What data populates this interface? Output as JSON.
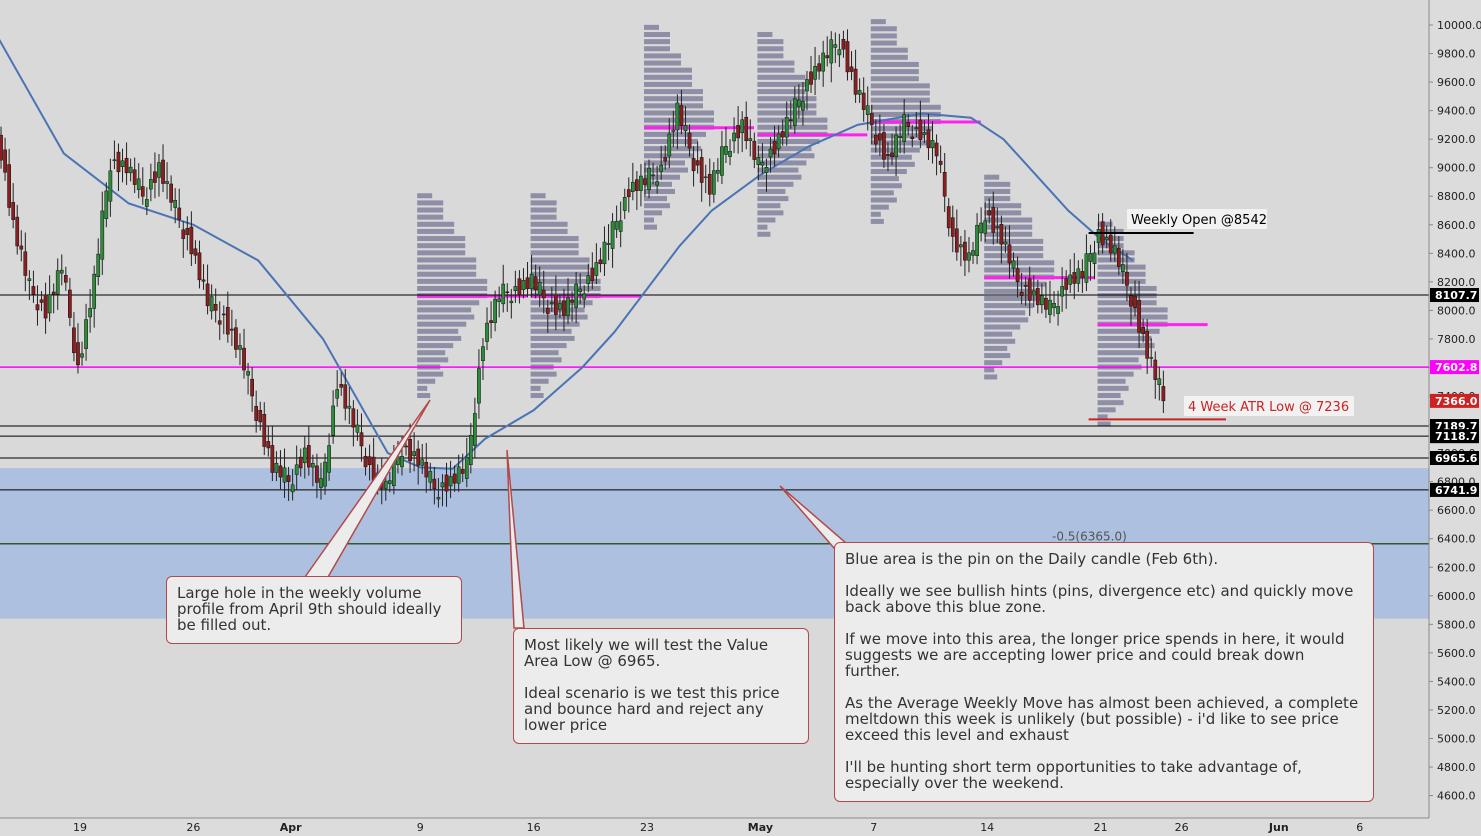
{
  "chart_data": {
    "type": "candlestick",
    "y_axis": {
      "min": 4500,
      "max": 10100,
      "ticks": [
        4600,
        4800,
        5000,
        5200,
        5400,
        5600,
        5800,
        6000,
        6200,
        6400,
        6600,
        6800,
        7000,
        7200,
        7400,
        7600,
        7800,
        8000,
        8200,
        8400,
        8600,
        8800,
        9000,
        9200,
        9400,
        9600,
        9800,
        10000
      ],
      "tick_labels": [
        "4600.0",
        "4800.0",
        "5000.0",
        "5200.0",
        "5400.0",
        "5600.0",
        "5800.0",
        "6000.0",
        "6200.0",
        "6400.0",
        "6600.0",
        "6800.0",
        "7000.0",
        "7200.0",
        "7400.0",
        "7600.0",
        "7800.0",
        "8000.0",
        "8200.0",
        "8400.0",
        "8600.0",
        "8800.0",
        "9000.0",
        "9200.0",
        "9400.0",
        "9600.0",
        "9800.0",
        "10000.0"
      ]
    },
    "x_axis": {
      "labels": [
        "19",
        "26",
        "Apr",
        "9",
        "16",
        "23",
        "May",
        "7",
        "14",
        "21",
        "26",
        "Jun",
        "6"
      ],
      "label_days": [
        0,
        7,
        13,
        21,
        28,
        35,
        42,
        49,
        56,
        63,
        68,
        74,
        79
      ]
    },
    "price_levels": [
      {
        "value": 8107.7,
        "label": "8107.7",
        "kind": "support-resistance",
        "color": "#000000"
      },
      {
        "value": 7602.8,
        "label": "7602.8",
        "kind": "magenta-level",
        "color": "#ff00ff"
      },
      {
        "value": 7366.0,
        "label": "7366.0",
        "kind": "last-price",
        "color": "#cc2222"
      },
      {
        "value": 7189.7,
        "label": "7189.7",
        "kind": "support-resistance",
        "color": "#000000"
      },
      {
        "value": 7118.7,
        "label": "7118.7",
        "kind": "support-resistance",
        "color": "#000000"
      },
      {
        "value": 6965.6,
        "label": "6965.6",
        "kind": "support-resistance",
        "color": "#000000"
      },
      {
        "value": 6741.9,
        "label": "6741.9",
        "kind": "support-resistance",
        "color": "#000000"
      }
    ],
    "zones": [
      {
        "name": "pin-daily-candle-zone",
        "from": 5840,
        "to": 6895,
        "color": "#a9bde0"
      }
    ],
    "fib_level": {
      "value": 6365.0,
      "label": "-0.5(6365.0)"
    },
    "segments": [
      {
        "name": "weekly-open-line",
        "day_from": 63,
        "day_to": 68,
        "value": 8542,
        "color": "#000000"
      },
      {
        "name": "atr-low-line",
        "day_from": 63,
        "day_to": 70,
        "value": 7236,
        "color": "#cc2222"
      }
    ],
    "annotations": [
      {
        "name": "weekly-open-label",
        "text": "Weekly Open @8542",
        "color": "#000000"
      },
      {
        "name": "atr-low-label",
        "text": "4 Week ATR Low @ 7236",
        "color": "#cc2222"
      }
    ],
    "moving_average": {
      "color": "#4a74b4",
      "points": [
        [
          -5,
          9900
        ],
        [
          -1,
          9100
        ],
        [
          3,
          8750
        ],
        [
          7,
          8600
        ],
        [
          11,
          8350
        ],
        [
          15,
          7800
        ],
        [
          17,
          7400
        ],
        [
          19,
          7000
        ],
        [
          21,
          6900
        ],
        [
          23,
          6890
        ],
        [
          25,
          7100
        ],
        [
          28,
          7300
        ],
        [
          31,
          7600
        ],
        [
          33,
          7850
        ],
        [
          35,
          8150
        ],
        [
          37,
          8450
        ],
        [
          39,
          8700
        ],
        [
          42,
          8950
        ],
        [
          45,
          9150
        ],
        [
          48,
          9300
        ],
        [
          52,
          9380
        ],
        [
          55,
          9350
        ],
        [
          57,
          9200
        ],
        [
          59,
          8950
        ],
        [
          61,
          8700
        ],
        [
          63,
          8500
        ],
        [
          65,
          8350
        ]
      ]
    },
    "price_path": [
      [
        -5,
        9300
      ],
      [
        -4,
        8600
      ],
      [
        -3,
        8150
      ],
      [
        -2,
        8000
      ],
      [
        -1,
        8300
      ],
      [
        0,
        7600
      ],
      [
        1,
        8200
      ],
      [
        2,
        9050
      ],
      [
        3,
        9000
      ],
      [
        4,
        8800
      ],
      [
        5,
        9000
      ],
      [
        6,
        8700
      ],
      [
        7,
        8450
      ],
      [
        8,
        8050
      ],
      [
        9,
        7950
      ],
      [
        10,
        7700
      ],
      [
        11,
        7300
      ],
      [
        12,
        6900
      ],
      [
        13,
        6800
      ],
      [
        14,
        7000
      ],
      [
        15,
        6750
      ],
      [
        16,
        7500
      ],
      [
        17,
        7200
      ],
      [
        18,
        6900
      ],
      [
        19,
        6750
      ],
      [
        20,
        7050
      ],
      [
        21,
        6950
      ],
      [
        22,
        6750
      ],
      [
        23,
        6800
      ],
      [
        24,
        6900
      ],
      [
        25,
        7800
      ],
      [
        26,
        8100
      ],
      [
        27,
        8150
      ],
      [
        28,
        8200
      ],
      [
        29,
        8050
      ],
      [
        30,
        8000
      ],
      [
        31,
        8150
      ],
      [
        32,
        8300
      ],
      [
        33,
        8550
      ],
      [
        34,
        8850
      ],
      [
        35,
        8900
      ],
      [
        36,
        9000
      ],
      [
        37,
        9400
      ],
      [
        38,
        9050
      ],
      [
        39,
        8850
      ],
      [
        40,
        9150
      ],
      [
        41,
        9300
      ],
      [
        42,
        9000
      ],
      [
        43,
        9150
      ],
      [
        44,
        9350
      ],
      [
        45,
        9600
      ],
      [
        46,
        9750
      ],
      [
        47,
        9900
      ],
      [
        48,
        9550
      ],
      [
        49,
        9300
      ],
      [
        50,
        9050
      ],
      [
        51,
        9300
      ],
      [
        52,
        9250
      ],
      [
        53,
        9100
      ],
      [
        54,
        8500
      ],
      [
        55,
        8350
      ],
      [
        56,
        8700
      ],
      [
        57,
        8500
      ],
      [
        58,
        8200
      ],
      [
        59,
        8100
      ],
      [
        60,
        8000
      ],
      [
        61,
        8200
      ],
      [
        62,
        8250
      ],
      [
        63,
        8550
      ],
      [
        64,
        8400
      ],
      [
        65,
        8100
      ],
      [
        66,
        7700
      ],
      [
        67,
        7366
      ]
    ],
    "volume_profiles": [
      {
        "day": 21,
        "poc": 8100,
        "color": "#7b7b99"
      },
      {
        "day": 28,
        "poc": 8100,
        "color": "#7b7b99"
      },
      {
        "day": 35,
        "poc": 9280,
        "color": "#7b7b99"
      },
      {
        "day": 42,
        "poc": 9230,
        "color": "#7b7b99"
      },
      {
        "day": 49,
        "poc": 9320,
        "color": "#7b7b99"
      },
      {
        "day": 56,
        "poc": 8230,
        "color": "#7b7b99"
      },
      {
        "day": 63,
        "poc": 7900,
        "color": "#7b7b99"
      }
    ]
  },
  "callouts": {
    "hole": "Large hole in the weekly volume profile from April 9th should ideally be filled out.",
    "value_area": "Most likely we will test the Value Area Low @ 6965.\n\nIdeal scenario is we test this price and bounce hard and reject any lower price",
    "blue_area": "Blue area is the pin on the Daily candle (Feb 6th).\n\nIdeally we see bullish hints (pins, divergence etc) and quickly move back above this blue zone.\n\nIf we move into this area, the longer price spends in here, it would suggests we are accepting lower price and could break down further.\n\nAs the Average Weekly Move has almost been achieved, a complete meltdown this week is unlikely (but possible) - i'd like to see price exceed this level and exhaust\n\nI'll be hunting short term opportunities to take advantage of, especially over the weekend."
  },
  "colors": {
    "background": "#d9d9d9",
    "candle_up": "#2e8b3a",
    "candle_down": "#8b1e1e",
    "callout_border": "#b24a4a"
  }
}
